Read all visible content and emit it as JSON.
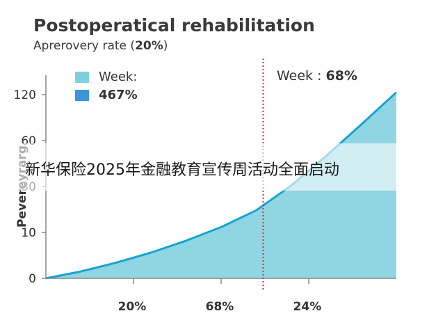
{
  "chart_data": {
    "type": "area",
    "title": "Postoperatical rehabilitation",
    "subtitle_prefix": "Aprerovery rate (",
    "subtitle_value": "20%",
    "ylabel": "Pevereyrarg",
    "yticks": [
      {
        "label": "0",
        "value": 0
      },
      {
        "label": "10",
        "value": 10
      },
      {
        "label": "30",
        "value": 30
      },
      {
        "label": "60",
        "value": 60
      },
      {
        "label": "120",
        "value": 120
      }
    ],
    "xticks": [
      {
        "label": "20%",
        "value": 0.25
      },
      {
        "label": "68%",
        "value": 0.5
      },
      {
        "label": "24%",
        "value": 0.75
      }
    ],
    "xlim": [
      0,
      1
    ],
    "series": [
      {
        "x": [
          0,
          0.1,
          0.2,
          0.3,
          0.4,
          0.5,
          0.6,
          0.7,
          0.8,
          0.9,
          1.0
        ],
        "y": [
          0,
          1.5,
          3.4,
          5.6,
          8.2,
          12.3,
          19.6,
          30.6,
          50.0,
          81.0,
          123.0
        ]
      }
    ],
    "marker": {
      "x": 0.62,
      "label_prefix": "Week : ",
      "label_value": "68%"
    },
    "legend": [
      {
        "label": "Week:",
        "color": "#7fd0de",
        "bold": false
      },
      {
        "label": "467%",
        "color": "#3a96d8",
        "bold": true
      }
    ],
    "colors": {
      "fill": "#8fd5e2",
      "line": "#17a3d0",
      "marker": "#d0303a",
      "axis": "#888888"
    },
    "grid": false,
    "legend_position": "top-left"
  },
  "overlay": {
    "banner_text": "新华保险2025年金融教育宣传周活动全面启动"
  }
}
